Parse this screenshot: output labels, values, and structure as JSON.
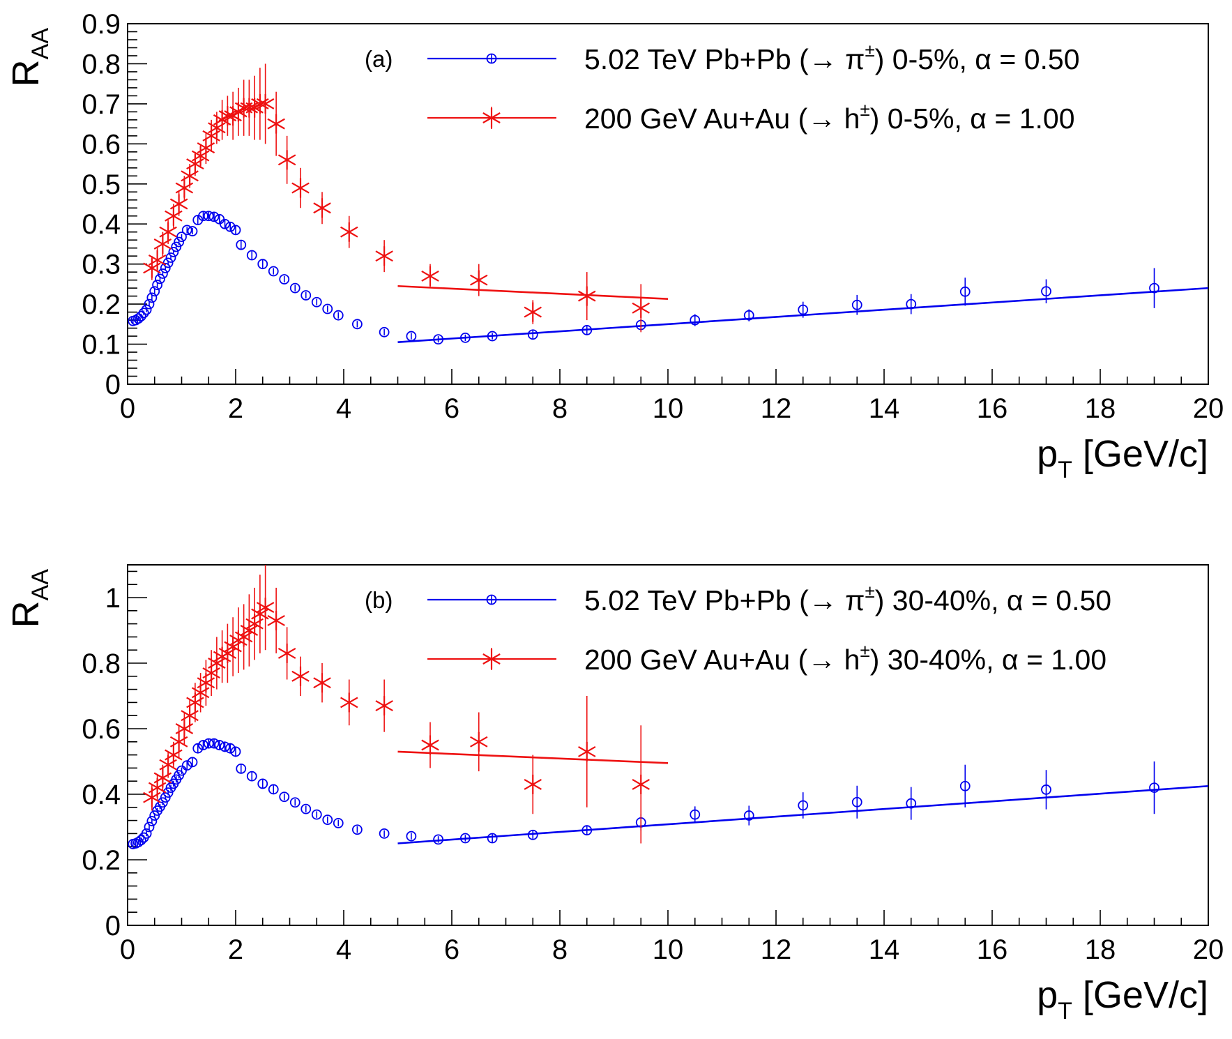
{
  "chart_data": [
    {
      "type": "scatter",
      "panel_label": "(a)",
      "ylabel": "R",
      "ylabel_sub": "AA",
      "xlabel": "p",
      "xlabel_sub": "T",
      "xlabel_unit": " [GeV/c]",
      "xlim": [
        0,
        20
      ],
      "ylim": [
        0,
        0.9
      ],
      "xticks": [
        "0",
        "2",
        "4",
        "6",
        "8",
        "10",
        "12",
        "14",
        "16",
        "18",
        "20"
      ],
      "yticks": [
        "0",
        "0.1",
        "0.2",
        "0.3",
        "0.4",
        "0.5",
        "0.6",
        "0.7",
        "0.8",
        "0.9"
      ],
      "legend_position": "top-right",
      "series": [
        {
          "name": "5.02 TeV Pb+Pb (→ π±) 0-5%, α = 0.50",
          "legend_prefix": "5.02 TeV Pb+Pb (→ π",
          "legend_sup": "±",
          "legend_suffix": ") 0-5%, α = 0.50",
          "color": "#0000ee",
          "marker": "open-circle",
          "points": [
            [
              0.1,
              0.158,
              0.006
            ],
            [
              0.15,
              0.16,
              0.006
            ],
            [
              0.2,
              0.164,
              0.006
            ],
            [
              0.25,
              0.17,
              0.006
            ],
            [
              0.3,
              0.178,
              0.006
            ],
            [
              0.35,
              0.186,
              0.006
            ],
            [
              0.4,
              0.2,
              0.006
            ],
            [
              0.45,
              0.216,
              0.006
            ],
            [
              0.5,
              0.232,
              0.006
            ],
            [
              0.55,
              0.248,
              0.006
            ],
            [
              0.6,
              0.263,
              0.006
            ],
            [
              0.65,
              0.276,
              0.006
            ],
            [
              0.7,
              0.29,
              0.006
            ],
            [
              0.75,
              0.303,
              0.006
            ],
            [
              0.8,
              0.316,
              0.006
            ],
            [
              0.85,
              0.33,
              0.006
            ],
            [
              0.9,
              0.343,
              0.007
            ],
            [
              0.95,
              0.355,
              0.007
            ],
            [
              1.0,
              0.368,
              0.007
            ],
            [
              1.1,
              0.385,
              0.008
            ],
            [
              1.2,
              0.382,
              0.008
            ],
            [
              1.3,
              0.41,
              0.01
            ],
            [
              1.4,
              0.42,
              0.01
            ],
            [
              1.5,
              0.42,
              0.01
            ],
            [
              1.6,
              0.418,
              0.012
            ],
            [
              1.7,
              0.412,
              0.012
            ],
            [
              1.8,
              0.4,
              0.012
            ],
            [
              1.9,
              0.393,
              0.012
            ],
            [
              2.0,
              0.385,
              0.012
            ],
            [
              2.1,
              0.348,
              0.012
            ],
            [
              2.3,
              0.322,
              0.01
            ],
            [
              2.5,
              0.3,
              0.01
            ],
            [
              2.7,
              0.282,
              0.008
            ],
            [
              2.9,
              0.262,
              0.008
            ],
            [
              3.1,
              0.24,
              0.008
            ],
            [
              3.3,
              0.222,
              0.008
            ],
            [
              3.5,
              0.205,
              0.008
            ],
            [
              3.7,
              0.188,
              0.008
            ],
            [
              3.9,
              0.172,
              0.008
            ],
            [
              4.25,
              0.15,
              0.008
            ],
            [
              4.75,
              0.13,
              0.008
            ],
            [
              5.25,
              0.12,
              0.008
            ],
            [
              5.75,
              0.112,
              0.008
            ],
            [
              6.25,
              0.116,
              0.008
            ],
            [
              6.75,
              0.12,
              0.008
            ],
            [
              7.5,
              0.124,
              0.01
            ],
            [
              8.5,
              0.135,
              0.012
            ],
            [
              9.5,
              0.148,
              0.015
            ],
            [
              10.5,
              0.16,
              0.015
            ],
            [
              11.5,
              0.172,
              0.015
            ],
            [
              12.5,
              0.186,
              0.02
            ],
            [
              13.5,
              0.198,
              0.025
            ],
            [
              14.5,
              0.2,
              0.025
            ],
            [
              15.5,
              0.231,
              0.035
            ],
            [
              17.0,
              0.232,
              0.03
            ],
            [
              19.0,
              0.24,
              0.05
            ]
          ],
          "fit": {
            "x": [
              5.0,
              20.0
            ],
            "y": [
              0.105,
              0.24
            ]
          }
        },
        {
          "name": "200 GeV Au+Au (→ h±) 0-5%, α = 1.00",
          "legend_prefix": "200 GeV Au+Au (→ h",
          "legend_sup": "±",
          "legend_suffix": ") 0-5%, α = 1.00",
          "color": "#ee1111",
          "marker": "star",
          "points": [
            [
              0.45,
              0.29,
              0.03
            ],
            [
              0.55,
              0.31,
              0.03
            ],
            [
              0.65,
              0.35,
              0.03
            ],
            [
              0.75,
              0.38,
              0.03
            ],
            [
              0.85,
              0.42,
              0.03
            ],
            [
              0.95,
              0.45,
              0.03
            ],
            [
              1.05,
              0.49,
              0.03
            ],
            [
              1.15,
              0.52,
              0.03
            ],
            [
              1.25,
              0.55,
              0.03
            ],
            [
              1.35,
              0.57,
              0.03
            ],
            [
              1.45,
              0.59,
              0.04
            ],
            [
              1.55,
              0.62,
              0.04
            ],
            [
              1.65,
              0.64,
              0.04
            ],
            [
              1.75,
              0.66,
              0.05
            ],
            [
              1.85,
              0.67,
              0.05
            ],
            [
              1.95,
              0.67,
              0.06
            ],
            [
              2.05,
              0.68,
              0.06
            ],
            [
              2.15,
              0.69,
              0.07
            ],
            [
              2.25,
              0.69,
              0.07
            ],
            [
              2.35,
              0.69,
              0.08
            ],
            [
              2.45,
              0.7,
              0.09
            ],
            [
              2.55,
              0.7,
              0.1
            ],
            [
              2.75,
              0.65,
              0.08
            ],
            [
              2.95,
              0.56,
              0.06
            ],
            [
              3.2,
              0.49,
              0.05
            ],
            [
              3.6,
              0.44,
              0.04
            ],
            [
              4.1,
              0.38,
              0.04
            ],
            [
              4.75,
              0.32,
              0.04
            ],
            [
              5.6,
              0.27,
              0.03
            ],
            [
              6.5,
              0.26,
              0.04
            ],
            [
              7.5,
              0.18,
              0.03
            ],
            [
              8.5,
              0.22,
              0.06
            ],
            [
              9.5,
              0.19,
              0.06
            ]
          ],
          "fit": {
            "x": [
              5.0,
              10.0
            ],
            "y": [
              0.245,
              0.213
            ]
          }
        }
      ]
    },
    {
      "type": "scatter",
      "panel_label": "(b)",
      "ylabel": "R",
      "ylabel_sub": "AA",
      "xlabel": "p",
      "xlabel_sub": "T",
      "xlabel_unit": " [GeV/c]",
      "xlim": [
        0,
        20
      ],
      "ylim": [
        0,
        1.1
      ],
      "xticks": [
        "0",
        "2",
        "4",
        "6",
        "8",
        "10",
        "12",
        "14",
        "16",
        "18",
        "20"
      ],
      "yticks": [
        "0",
        "0.2",
        "0.4",
        "0.6",
        "0.8",
        "1"
      ],
      "legend_position": "top-right",
      "series": [
        {
          "name": "5.02 TeV Pb+Pb (→ π±) 30-40%, α = 0.50",
          "legend_prefix": "5.02 TeV Pb+Pb (→ π",
          "legend_sup": "±",
          "legend_suffix": ") 30-40%, α = 0.50",
          "color": "#0000ee",
          "marker": "open-circle",
          "points": [
            [
              0.1,
              0.248,
              0.008
            ],
            [
              0.15,
              0.25,
              0.008
            ],
            [
              0.2,
              0.254,
              0.008
            ],
            [
              0.25,
              0.26,
              0.008
            ],
            [
              0.3,
              0.268,
              0.008
            ],
            [
              0.35,
              0.28,
              0.008
            ],
            [
              0.4,
              0.3,
              0.008
            ],
            [
              0.45,
              0.318,
              0.008
            ],
            [
              0.5,
              0.335,
              0.008
            ],
            [
              0.55,
              0.35,
              0.008
            ],
            [
              0.6,
              0.362,
              0.008
            ],
            [
              0.65,
              0.375,
              0.008
            ],
            [
              0.7,
              0.39,
              0.008
            ],
            [
              0.75,
              0.405,
              0.008
            ],
            [
              0.8,
              0.42,
              0.009
            ],
            [
              0.85,
              0.432,
              0.009
            ],
            [
              0.9,
              0.445,
              0.01
            ],
            [
              0.95,
              0.458,
              0.01
            ],
            [
              1.0,
              0.472,
              0.01
            ],
            [
              1.1,
              0.488,
              0.012
            ],
            [
              1.2,
              0.498,
              0.012
            ],
            [
              1.3,
              0.54,
              0.014
            ],
            [
              1.4,
              0.55,
              0.014
            ],
            [
              1.5,
              0.555,
              0.015
            ],
            [
              1.6,
              0.555,
              0.015
            ],
            [
              1.7,
              0.55,
              0.016
            ],
            [
              1.8,
              0.545,
              0.016
            ],
            [
              1.9,
              0.54,
              0.016
            ],
            [
              2.0,
              0.53,
              0.016
            ],
            [
              2.1,
              0.478,
              0.015
            ],
            [
              2.3,
              0.455,
              0.012
            ],
            [
              2.5,
              0.432,
              0.012
            ],
            [
              2.7,
              0.415,
              0.012
            ],
            [
              2.9,
              0.392,
              0.01
            ],
            [
              3.1,
              0.375,
              0.01
            ],
            [
              3.3,
              0.355,
              0.01
            ],
            [
              3.5,
              0.338,
              0.01
            ],
            [
              3.7,
              0.322,
              0.01
            ],
            [
              3.9,
              0.312,
              0.01
            ],
            [
              4.25,
              0.292,
              0.01
            ],
            [
              4.75,
              0.28,
              0.01
            ],
            [
              5.25,
              0.272,
              0.01
            ],
            [
              5.75,
              0.262,
              0.01
            ],
            [
              6.25,
              0.266,
              0.01
            ],
            [
              6.75,
              0.266,
              0.012
            ],
            [
              7.5,
              0.276,
              0.012
            ],
            [
              8.5,
              0.29,
              0.015
            ],
            [
              9.5,
              0.314,
              0.025
            ],
            [
              10.5,
              0.338,
              0.025
            ],
            [
              11.5,
              0.335,
              0.03
            ],
            [
              12.5,
              0.366,
              0.04
            ],
            [
              13.5,
              0.376,
              0.05
            ],
            [
              14.5,
              0.372,
              0.05
            ],
            [
              15.5,
              0.425,
              0.065
            ],
            [
              17.0,
              0.414,
              0.06
            ],
            [
              19.0,
              0.42,
              0.08
            ]
          ],
          "fit": {
            "x": [
              5.0,
              20.0
            ],
            "y": [
              0.25,
              0.425
            ]
          }
        },
        {
          "name": "200 GeV Au+Au (→ h±) 30-40%, α = 1.00",
          "legend_prefix": "200 GeV Au+Au (→ h",
          "legend_sup": "±",
          "legend_suffix": ") 30-40%, α = 1.00",
          "color": "#ee1111",
          "marker": "star",
          "points": [
            [
              0.45,
              0.39,
              0.04
            ],
            [
              0.55,
              0.42,
              0.04
            ],
            [
              0.65,
              0.45,
              0.04
            ],
            [
              0.75,
              0.49,
              0.04
            ],
            [
              0.85,
              0.52,
              0.04
            ],
            [
              0.95,
              0.56,
              0.05
            ],
            [
              1.05,
              0.6,
              0.05
            ],
            [
              1.15,
              0.64,
              0.05
            ],
            [
              1.25,
              0.68,
              0.06
            ],
            [
              1.35,
              0.71,
              0.06
            ],
            [
              1.45,
              0.74,
              0.07
            ],
            [
              1.55,
              0.77,
              0.07
            ],
            [
              1.65,
              0.8,
              0.08
            ],
            [
              1.75,
              0.82,
              0.08
            ],
            [
              1.85,
              0.83,
              0.09
            ],
            [
              1.95,
              0.85,
              0.09
            ],
            [
              2.05,
              0.87,
              0.1
            ],
            [
              2.15,
              0.88,
              0.1
            ],
            [
              2.25,
              0.9,
              0.11
            ],
            [
              2.35,
              0.92,
              0.11
            ],
            [
              2.45,
              0.95,
              0.12
            ],
            [
              2.55,
              0.97,
              0.13
            ],
            [
              2.75,
              0.93,
              0.1
            ],
            [
              2.95,
              0.83,
              0.08
            ],
            [
              3.2,
              0.76,
              0.06
            ],
            [
              3.6,
              0.74,
              0.06
            ],
            [
              4.1,
              0.68,
              0.07
            ],
            [
              4.75,
              0.67,
              0.08
            ],
            [
              5.6,
              0.55,
              0.07
            ],
            [
              6.5,
              0.56,
              0.09
            ],
            [
              7.5,
              0.43,
              0.09
            ],
            [
              8.5,
              0.53,
              0.17
            ],
            [
              9.5,
              0.43,
              0.18
            ]
          ],
          "fit": {
            "x": [
              5.0,
              10.0
            ],
            "y": [
              0.53,
              0.495
            ]
          }
        }
      ]
    }
  ]
}
